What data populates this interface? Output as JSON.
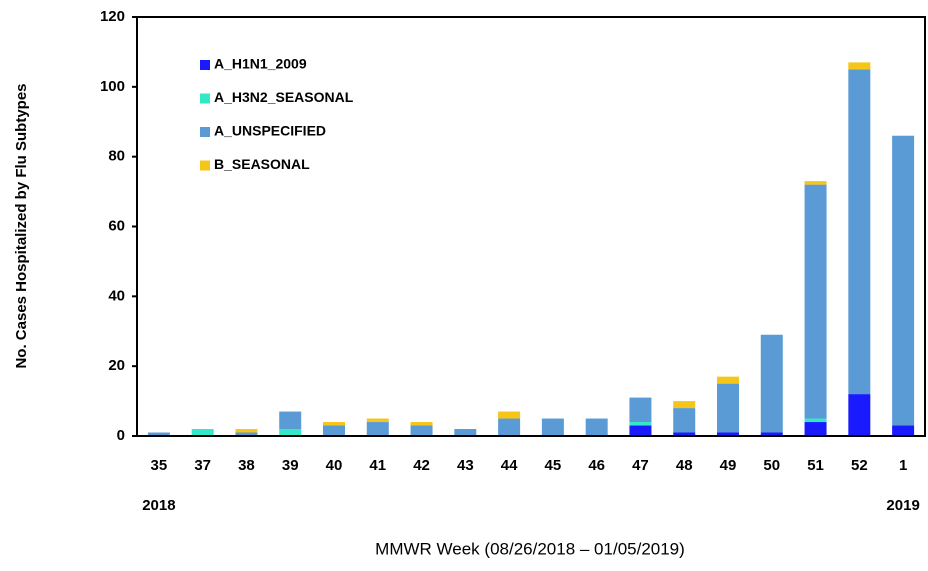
{
  "chart_data": {
    "type": "stacked_bar",
    "x_label": "MMWR Week (08/26/2018 – 01/05/2019)",
    "y_label": "No. Cases Hospitalized by Flu Subtypes",
    "categories": [
      "35",
      "37",
      "38",
      "39",
      "40",
      "41",
      "42",
      "43",
      "44",
      "45",
      "46",
      "47",
      "48",
      "49",
      "50",
      "51",
      "52",
      "1"
    ],
    "x_sublabels": [
      "2018",
      null,
      null,
      null,
      null,
      null,
      null,
      null,
      null,
      null,
      null,
      null,
      null,
      null,
      null,
      null,
      null,
      "2019"
    ],
    "series": [
      {
        "name": "A_H1N1_2009",
        "color": "#1a1aff",
        "values": [
          0,
          0,
          0,
          0,
          0,
          0,
          0,
          0,
          0,
          0,
          0,
          3,
          1,
          1,
          1,
          4,
          12,
          3
        ]
      },
      {
        "name": "A_H3N2_SEASONAL",
        "color": "#33e8c8",
        "values": [
          0,
          2,
          0,
          2,
          0,
          0,
          0,
          0,
          0,
          0,
          0,
          1,
          0,
          0,
          0,
          1,
          0,
          0
        ]
      },
      {
        "name": "A_UNSPECIFIED",
        "color": "#5b9bd5",
        "values": [
          1,
          0,
          1,
          5,
          3,
          4,
          3,
          2,
          5,
          5,
          5,
          7,
          7,
          14,
          28,
          67,
          93,
          83
        ]
      },
      {
        "name": "B_SEASONAL",
        "color": "#f5c518",
        "values": [
          0,
          0,
          1,
          0,
          1,
          1,
          1,
          0,
          2,
          0,
          0,
          0,
          2,
          2,
          0,
          1,
          2,
          0
        ]
      }
    ],
    "ylim": [
      0,
      120
    ],
    "yticks": [
      0,
      20,
      40,
      60,
      80,
      100,
      120
    ],
    "grid": false,
    "legend": "top-left"
  }
}
